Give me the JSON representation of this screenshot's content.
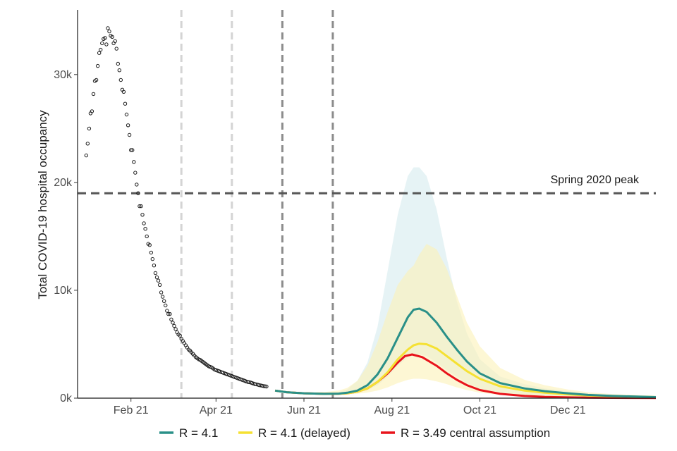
{
  "chart_data": {
    "type": "line",
    "title": "",
    "xlabel": "",
    "ylabel": "Total COVID-19 hospital occupancy",
    "x_axis": {
      "type": "date",
      "range": [
        "2020-12-26",
        "2022-01-31"
      ],
      "ticks": [
        {
          "date": "2021-02-01",
          "label": "Feb 21"
        },
        {
          "date": "2021-04-01",
          "label": "Apr 21"
        },
        {
          "date": "2021-06-01",
          "label": "Jun 21"
        },
        {
          "date": "2021-08-01",
          "label": "Aug 21"
        },
        {
          "date": "2021-10-01",
          "label": "Oct 21"
        },
        {
          "date": "2021-12-01",
          "label": "Dec 21"
        }
      ]
    },
    "y_axis": {
      "range": [
        0,
        36000
      ],
      "ticks": [
        {
          "value": 0,
          "label": "0k"
        },
        {
          "value": 10000,
          "label": "10k"
        },
        {
          "value": 20000,
          "label": "20k"
        },
        {
          "value": 30000,
          "label": "30k"
        }
      ]
    },
    "grid": false,
    "legend_position": "bottom",
    "reference_line": {
      "value": 19000,
      "label": "Spring 2020 peak",
      "color": "#555555"
    },
    "vertical_lines": [
      {
        "date": "2021-03-08",
        "color": "#d4d4d4"
      },
      {
        "date": "2021-04-12",
        "color": "#d4d4d4"
      },
      {
        "date": "2021-05-17",
        "color": "#8c8c8c"
      },
      {
        "date": "2021-06-21",
        "color": "#8c8c8c"
      }
    ],
    "observed": {
      "marker": "open-circle",
      "points": [
        [
          "2021-01-01",
          22500
        ],
        [
          "2021-01-02",
          23600
        ],
        [
          "2021-01-03",
          25000
        ],
        [
          "2021-01-04",
          26400
        ],
        [
          "2021-01-05",
          26600
        ],
        [
          "2021-01-06",
          28200
        ],
        [
          "2021-01-07",
          29400
        ],
        [
          "2021-01-08",
          29500
        ],
        [
          "2021-01-09",
          30800
        ],
        [
          "2021-01-10",
          32000
        ],
        [
          "2021-01-11",
          32300
        ],
        [
          "2021-01-12",
          32900
        ],
        [
          "2021-01-13",
          33300
        ],
        [
          "2021-01-14",
          33400
        ],
        [
          "2021-01-15",
          32800
        ],
        [
          "2021-01-16",
          34300
        ],
        [
          "2021-01-17",
          34000
        ],
        [
          "2021-01-18",
          33600
        ],
        [
          "2021-01-19",
          33500
        ],
        [
          "2021-01-20",
          32900
        ],
        [
          "2021-01-21",
          33100
        ],
        [
          "2021-01-22",
          32400
        ],
        [
          "2021-01-23",
          31000
        ],
        [
          "2021-01-24",
          30400
        ],
        [
          "2021-01-25",
          29500
        ],
        [
          "2021-01-26",
          28600
        ],
        [
          "2021-01-27",
          28400
        ],
        [
          "2021-01-28",
          27300
        ],
        [
          "2021-01-29",
          26300
        ],
        [
          "2021-01-30",
          25300
        ],
        [
          "2021-01-31",
          24400
        ],
        [
          "2021-02-01",
          23000
        ],
        [
          "2021-02-02",
          23000
        ],
        [
          "2021-02-03",
          21900
        ],
        [
          "2021-02-04",
          20900
        ],
        [
          "2021-02-05",
          19800
        ],
        [
          "2021-02-06",
          19000
        ],
        [
          "2021-02-07",
          17800
        ],
        [
          "2021-02-08",
          17800
        ],
        [
          "2021-02-09",
          17000
        ],
        [
          "2021-02-10",
          16200
        ],
        [
          "2021-02-11",
          15700
        ],
        [
          "2021-02-12",
          15000
        ],
        [
          "2021-02-13",
          14300
        ],
        [
          "2021-02-14",
          14200
        ],
        [
          "2021-02-15",
          13500
        ],
        [
          "2021-02-16",
          12900
        ],
        [
          "2021-02-17",
          12300
        ],
        [
          "2021-02-18",
          11600
        ],
        [
          "2021-02-19",
          11200
        ],
        [
          "2021-02-20",
          10900
        ],
        [
          "2021-02-21",
          10500
        ],
        [
          "2021-02-22",
          9800
        ],
        [
          "2021-02-23",
          9400
        ],
        [
          "2021-02-24",
          9000
        ],
        [
          "2021-02-25",
          8600
        ],
        [
          "2021-02-26",
          8100
        ],
        [
          "2021-02-27",
          7800
        ],
        [
          "2021-02-28",
          7800
        ],
        [
          "2021-03-01",
          7300
        ],
        [
          "2021-03-02",
          7000
        ],
        [
          "2021-03-03",
          6700
        ],
        [
          "2021-03-04",
          6400
        ],
        [
          "2021-03-05",
          6100
        ],
        [
          "2021-03-06",
          5900
        ],
        [
          "2021-03-07",
          5800
        ],
        [
          "2021-03-08",
          5500
        ],
        [
          "2021-03-09",
          5300
        ],
        [
          "2021-03-10",
          5100
        ],
        [
          "2021-03-11",
          4900
        ],
        [
          "2021-03-12",
          4700
        ],
        [
          "2021-03-13",
          4500
        ],
        [
          "2021-03-14",
          4400
        ],
        [
          "2021-03-15",
          4250
        ],
        [
          "2021-03-16",
          4100
        ],
        [
          "2021-03-17",
          3950
        ],
        [
          "2021-03-18",
          3800
        ],
        [
          "2021-03-19",
          3700
        ],
        [
          "2021-03-20",
          3600
        ],
        [
          "2021-03-21",
          3550
        ],
        [
          "2021-03-22",
          3450
        ],
        [
          "2021-03-23",
          3350
        ],
        [
          "2021-03-24",
          3250
        ],
        [
          "2021-03-25",
          3150
        ],
        [
          "2021-03-26",
          3050
        ],
        [
          "2021-03-27",
          2950
        ],
        [
          "2021-03-28",
          2900
        ],
        [
          "2021-03-29",
          2850
        ],
        [
          "2021-03-30",
          2750
        ],
        [
          "2021-03-31",
          2650
        ],
        [
          "2021-04-01",
          2600
        ],
        [
          "2021-04-02",
          2550
        ],
        [
          "2021-04-03",
          2500
        ],
        [
          "2021-04-04",
          2450
        ],
        [
          "2021-04-05",
          2400
        ],
        [
          "2021-04-06",
          2350
        ],
        [
          "2021-04-07",
          2300
        ],
        [
          "2021-04-08",
          2250
        ],
        [
          "2021-04-09",
          2200
        ],
        [
          "2021-04-10",
          2150
        ],
        [
          "2021-04-11",
          2100
        ],
        [
          "2021-04-12",
          2050
        ],
        [
          "2021-04-13",
          2000
        ],
        [
          "2021-04-14",
          1950
        ],
        [
          "2021-04-15",
          1900
        ],
        [
          "2021-04-16",
          1850
        ],
        [
          "2021-04-17",
          1800
        ],
        [
          "2021-04-18",
          1750
        ],
        [
          "2021-04-19",
          1700
        ],
        [
          "2021-04-20",
          1650
        ],
        [
          "2021-04-21",
          1600
        ],
        [
          "2021-04-22",
          1550
        ],
        [
          "2021-04-23",
          1500
        ],
        [
          "2021-04-24",
          1480
        ],
        [
          "2021-04-25",
          1450
        ],
        [
          "2021-04-26",
          1400
        ],
        [
          "2021-04-27",
          1350
        ],
        [
          "2021-04-28",
          1300
        ],
        [
          "2021-04-29",
          1280
        ],
        [
          "2021-04-30",
          1250
        ],
        [
          "2021-05-01",
          1200
        ],
        [
          "2021-05-02",
          1180
        ],
        [
          "2021-05-03",
          1150
        ],
        [
          "2021-05-04",
          1120
        ],
        [
          "2021-05-05",
          1100
        ],
        [
          "2021-05-06",
          1080
        ]
      ]
    },
    "series": [
      {
        "name": "R = 4.1",
        "color": "#2a9088",
        "band_color": "#d8ecef",
        "x": [
          "2021-05-12",
          "2021-05-20",
          "2021-06-01",
          "2021-06-15",
          "2021-06-25",
          "2021-07-01",
          "2021-07-08",
          "2021-07-15",
          "2021-07-22",
          "2021-07-29",
          "2021-08-05",
          "2021-08-12",
          "2021-08-16",
          "2021-08-20",
          "2021-08-25",
          "2021-09-01",
          "2021-09-08",
          "2021-09-15",
          "2021-09-22",
          "2021-10-01",
          "2021-10-15",
          "2021-11-01",
          "2021-11-15",
          "2021-12-01",
          "2021-12-15",
          "2022-01-01",
          "2022-01-31"
        ],
        "values": [
          700,
          550,
          450,
          400,
          420,
          500,
          700,
          1200,
          2200,
          3700,
          5600,
          7500,
          8200,
          8300,
          8000,
          7000,
          5700,
          4500,
          3400,
          2300,
          1400,
          900,
          650,
          450,
          300,
          200,
          100
        ],
        "lower": [
          700,
          540,
          430,
          370,
          380,
          430,
          530,
          750,
          1200,
          2000,
          3000,
          3800,
          4000,
          4050,
          3900,
          3300,
          2600,
          2000,
          1400,
          900,
          500,
          300,
          180,
          110,
          70,
          40,
          20
        ],
        "upper": [
          700,
          560,
          480,
          450,
          560,
          800,
          1600,
          3300,
          6600,
          11800,
          17000,
          20600,
          21400,
          21400,
          20600,
          17500,
          13000,
          9000,
          6000,
          3600,
          2000,
          1300,
          900,
          650,
          450,
          300,
          180
        ]
      },
      {
        "name": "R = 4.1 (delayed)",
        "color": "#f5e132",
        "band_color": "#fbf1b8",
        "x": [
          "2021-05-12",
          "2021-05-20",
          "2021-06-01",
          "2021-06-15",
          "2021-06-25",
          "2021-07-01",
          "2021-07-08",
          "2021-07-15",
          "2021-07-22",
          "2021-07-29",
          "2021-08-05",
          "2021-08-12",
          "2021-08-16",
          "2021-08-20",
          "2021-08-25",
          "2021-09-01",
          "2021-09-08",
          "2021-09-15",
          "2021-09-22",
          "2021-10-01",
          "2021-10-15",
          "2021-11-01",
          "2021-11-15",
          "2021-12-01",
          "2021-12-15",
          "2022-01-01",
          "2022-01-31"
        ],
        "values": [
          700,
          550,
          450,
          400,
          410,
          450,
          600,
          900,
          1500,
          2400,
          3600,
          4500,
          4900,
          5050,
          5000,
          4600,
          3900,
          3200,
          2500,
          1800,
          1100,
          700,
          500,
          350,
          250,
          180,
          100
        ],
        "lower": [
          700,
          540,
          430,
          360,
          350,
          360,
          420,
          520,
          700,
          1000,
          1400,
          1700,
          1800,
          1800,
          1750,
          1550,
          1300,
          1000,
          750,
          500,
          300,
          180,
          110,
          70,
          45,
          30,
          15
        ],
        "upper": [
          700,
          580,
          530,
          560,
          700,
          950,
          1600,
          3000,
          5200,
          8000,
          10500,
          11800,
          12300,
          13300,
          14300,
          13800,
          12000,
          9500,
          7000,
          4800,
          2800,
          1700,
          1200,
          800,
          550,
          380,
          220
        ]
      },
      {
        "name": "R = 3.49 central assumption",
        "color": "#e8141c",
        "x": [
          "2021-05-12",
          "2021-05-20",
          "2021-06-01",
          "2021-06-15",
          "2021-06-25",
          "2021-07-01",
          "2021-07-08",
          "2021-07-15",
          "2021-07-22",
          "2021-07-29",
          "2021-08-05",
          "2021-08-10",
          "2021-08-15",
          "2021-08-22",
          "2021-09-01",
          "2021-09-08",
          "2021-09-15",
          "2021-09-22",
          "2021-10-01",
          "2021-10-15",
          "2021-11-01",
          "2021-11-15",
          "2021-12-01",
          "2021-12-15",
          "2022-01-01",
          "2022-01-31"
        ],
        "values": [
          700,
          550,
          450,
          400,
          410,
          450,
          600,
          900,
          1500,
          2300,
          3300,
          3900,
          4050,
          3800,
          3000,
          2300,
          1700,
          1200,
          750,
          400,
          200,
          120,
          70,
          50,
          30,
          20
        ]
      }
    ]
  }
}
